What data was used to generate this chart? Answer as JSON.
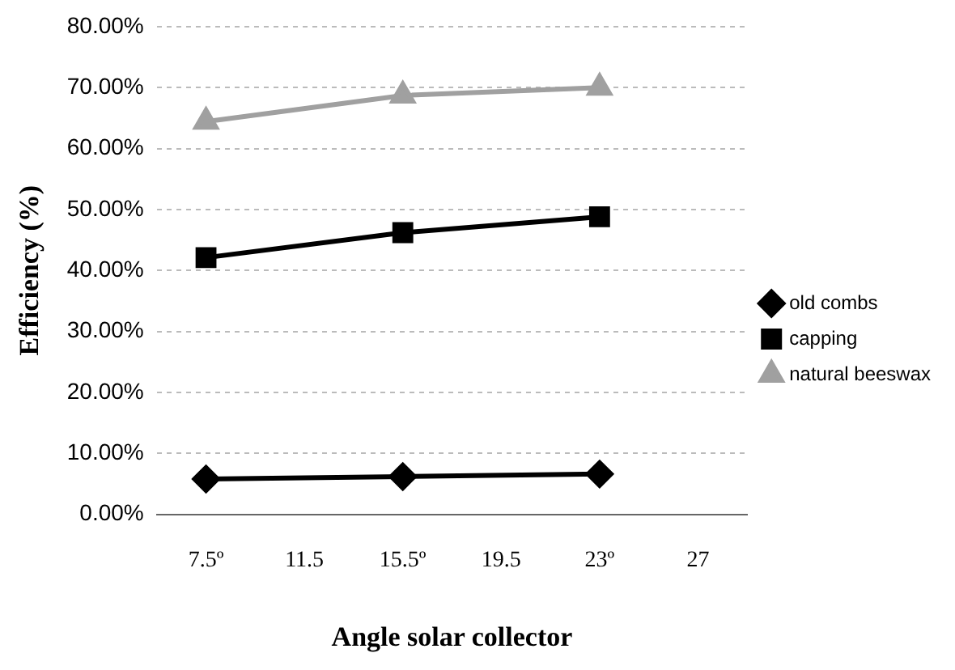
{
  "chart_data": {
    "type": "line",
    "xlabel": "Angle solar collector",
    "ylabel": "Efficiency (%)",
    "categories": [
      "7.5º",
      "11.5",
      "15.5º",
      "19.5",
      "23º",
      "27"
    ],
    "ylim": [
      0,
      80
    ],
    "yticks": [
      {
        "value": 0,
        "label": "0.00%"
      },
      {
        "value": 10,
        "label": "10.00%"
      },
      {
        "value": 20,
        "label": "20.00%"
      },
      {
        "value": 30,
        "label": "30.00%"
      },
      {
        "value": 40,
        "label": "40.00%"
      },
      {
        "value": 50,
        "label": "50.00%"
      },
      {
        "value": 60,
        "label": "60.00%"
      },
      {
        "value": 70,
        "label": "70.00%"
      },
      {
        "value": 80,
        "label": "80.00%"
      }
    ],
    "grid": "y",
    "legend": "right",
    "series": [
      {
        "name": "old combs",
        "color": "#000000",
        "marker": "diamond",
        "values": [
          5.8,
          null,
          6.2,
          null,
          6.6,
          null
        ]
      },
      {
        "name": "capping",
        "color": "#000000",
        "marker": "square",
        "values": [
          42.1,
          null,
          46.2,
          null,
          48.8,
          null
        ]
      },
      {
        "name": "natural beeswax",
        "color": "#a0a0a0",
        "marker": "triangle",
        "values": [
          64.4,
          null,
          68.7,
          null,
          70.0,
          null
        ]
      }
    ]
  }
}
